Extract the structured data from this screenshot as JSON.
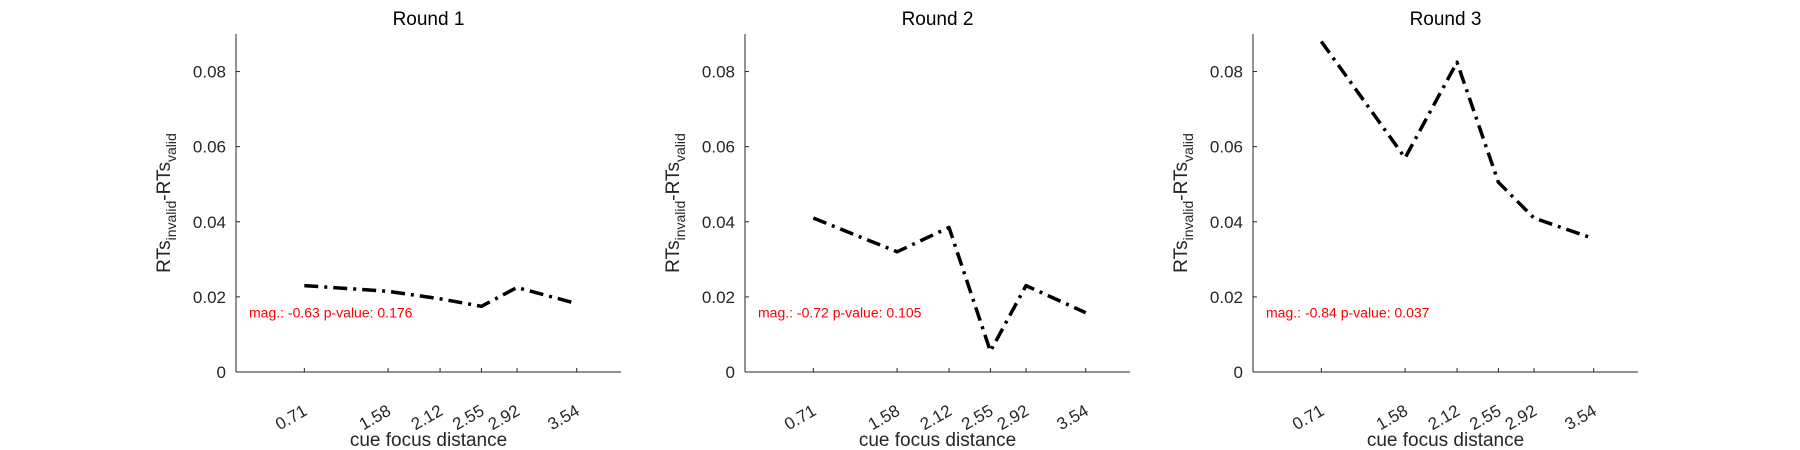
{
  "colors": {
    "line": "#000000",
    "annotation": "#ff0000",
    "axis": "#262626"
  },
  "chart_data": [
    {
      "type": "line",
      "title": "Round 1",
      "xlabel": "cue focus distance",
      "ylabel": {
        "base": "RTs",
        "sub1": "invalid",
        "mid": "-RTs",
        "sub2": "valid"
      },
      "x": [
        0.71,
        1.58,
        2.12,
        2.55,
        2.92,
        3.54
      ],
      "xtick_labels": [
        "0.71",
        "1.58",
        "2.12",
        "2.55",
        "2.92",
        "3.54"
      ],
      "xlim": [
        0,
        4
      ],
      "ylim": [
        0,
        0.09
      ],
      "yticks": [
        0,
        0.02,
        0.04,
        0.06,
        0.08
      ],
      "ytick_labels": [
        "0",
        "0.02",
        "0.04",
        "0.06",
        "0.08"
      ],
      "series": [
        {
          "values": [
            0.023,
            0.0215,
            0.0195,
            0.0175,
            0.0225,
            0.0182
          ]
        }
      ],
      "annotation": "mag.: -0.63 p-value: 0.176"
    },
    {
      "type": "line",
      "title": "Round 2",
      "xlabel": "cue focus distance",
      "ylabel": {
        "base": "RTs",
        "sub1": "invalid",
        "mid": "-RTs",
        "sub2": "valid"
      },
      "x": [
        0.71,
        1.58,
        2.12,
        2.55,
        2.92,
        3.54
      ],
      "xtick_labels": [
        "0.71",
        "1.58",
        "2.12",
        "2.55",
        "2.92",
        "3.54"
      ],
      "xlim": [
        0,
        4
      ],
      "ylim": [
        0,
        0.09
      ],
      "yticks": [
        0,
        0.02,
        0.04,
        0.06,
        0.08
      ],
      "ytick_labels": [
        "0",
        "0.02",
        "0.04",
        "0.06",
        "0.08"
      ],
      "series": [
        {
          "values": [
            0.041,
            0.032,
            0.0385,
            0.0055,
            0.023,
            0.0158
          ]
        }
      ],
      "annotation": "mag.: -0.72 p-value: 0.105"
    },
    {
      "type": "line",
      "title": "Round 3",
      "xlabel": "cue focus distance",
      "ylabel": {
        "base": "RTs",
        "sub1": "invalid",
        "mid": "-RTs",
        "sub2": "valid"
      },
      "x": [
        0.71,
        1.58,
        2.12,
        2.55,
        2.92,
        3.54
      ],
      "xtick_labels": [
        "0.71",
        "1.58",
        "2.12",
        "2.55",
        "2.92",
        "3.54"
      ],
      "xlim": [
        0,
        4
      ],
      "ylim": [
        0,
        0.09
      ],
      "yticks": [
        0,
        0.02,
        0.04,
        0.06,
        0.08
      ],
      "ytick_labels": [
        "0",
        "0.02",
        "0.04",
        "0.06",
        "0.08"
      ],
      "series": [
        {
          "values": [
            0.088,
            0.057,
            0.0825,
            0.0505,
            0.041,
            0.0355
          ]
        }
      ],
      "annotation": "mag.: -0.84 p-value: 0.037"
    }
  ]
}
